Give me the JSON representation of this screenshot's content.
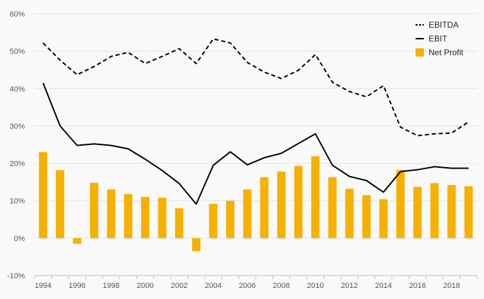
{
  "chart_data": {
    "type": "bar+line",
    "categories": [
      "1994",
      "1995",
      "1996",
      "1997",
      "1998",
      "1999",
      "2000",
      "2001",
      "2002",
      "2003",
      "2004",
      "2005",
      "2006",
      "2007",
      "2008",
      "2009",
      "2010",
      "2011",
      "2012",
      "2013",
      "2014",
      "2015",
      "2016",
      "2017",
      "2018",
      "2019"
    ],
    "x_tick_labels": [
      "1994",
      "1996",
      "1998",
      "2000",
      "2002",
      "2004",
      "2006",
      "2008",
      "2010",
      "2012",
      "2014",
      "2016",
      "2018"
    ],
    "y_tick_labels": [
      "-10%",
      "0%",
      "10%",
      "20%",
      "30%",
      "40%",
      "50%",
      "60%"
    ],
    "ylim": [
      -10,
      60
    ],
    "y_unit": "%",
    "grid": "horizontal",
    "legend_position": "top-right",
    "series": [
      {
        "name": "EBITDA",
        "kind": "line",
        "style": "dashed",
        "color": "#000000",
        "values": [
          52.2,
          47.6,
          43.7,
          45.9,
          48.6,
          49.7,
          46.7,
          48.6,
          50.7,
          46.7,
          53.3,
          52.2,
          47.0,
          44.4,
          42.7,
          44.9,
          49.1,
          41.7,
          39.2,
          37.8,
          40.8,
          29.7,
          27.4,
          27.9,
          28.1,
          31.1
        ]
      },
      {
        "name": "EBIT",
        "kind": "line",
        "style": "solid",
        "color": "#000000",
        "values": [
          41.5,
          30.0,
          24.8,
          25.2,
          24.8,
          23.9,
          21.1,
          18.1,
          14.6,
          9.1,
          19.5,
          23.1,
          19.6,
          21.5,
          22.7,
          25.3,
          27.9,
          19.5,
          16.5,
          15.4,
          12.3,
          17.8,
          18.3,
          19.1,
          18.7,
          18.7
        ]
      },
      {
        "name": "Net Profit",
        "kind": "bar",
        "color": "#f6b000",
        "values": [
          23.0,
          18.2,
          -1.5,
          14.8,
          13.0,
          11.8,
          11.0,
          10.8,
          8.0,
          -3.5,
          9.2,
          10.0,
          13.0,
          16.3,
          17.8,
          19.3,
          21.9,
          16.3,
          13.2,
          11.5,
          10.4,
          18.2,
          13.7,
          14.7,
          14.2,
          13.9
        ]
      }
    ]
  }
}
